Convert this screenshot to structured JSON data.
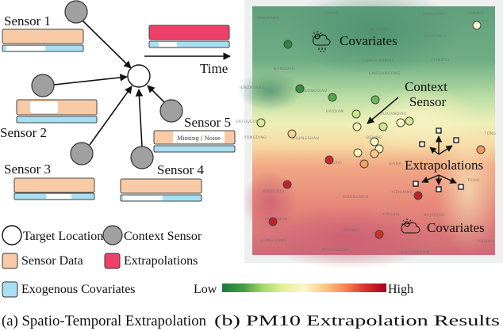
{
  "panel_a": {
    "sensors": [
      "Sensor 1",
      "Sensor 2",
      "Sensor 3",
      "Sensor 4",
      "Sensor 5"
    ],
    "missing_label": "Missing / Noise",
    "time_label": "Time",
    "legend": {
      "target_location": "Target Location",
      "context_sensor": "Context Sensor",
      "sensor_data": "Sensor Data",
      "extrapolations": "Extrapolations",
      "exogenous_covariates": "Exogenous Covariates"
    },
    "colors": {
      "sensor_data": "#f8cba6",
      "extrapolations": "#f0406a",
      "covariates": "#a8dff2",
      "context_sensor": "#a0a0a0"
    },
    "caption": "(a) Spatio-Temporal Extrapolation"
  },
  "panel_b": {
    "covariates_top": "Covariates",
    "covariates_bottom": "Covariates",
    "context_line1": "Context",
    "context_line2": "Sensor",
    "extrapolations": "Extrapolations",
    "colorbar_low": "Low",
    "colorbar_high": "High",
    "colorbar_colors": [
      "#1a7a43",
      "#3f9d3e",
      "#a6d96a",
      "#e6f29a",
      "#fdf6c8",
      "#fdc784",
      "#f4864f",
      "#d7302a",
      "#a50026"
    ],
    "caption": "(b) PM10 Extrapolation Results",
    "places": [
      "YANGFANG",
      "SHAHE",
      "BEIQIJIA",
      "GAOLIYING",
      "SHUNYI",
      "HOUSHAYU",
      "DONGXIAOKOU",
      "TIANZHU",
      "WENQUAN",
      "LAIGUANGYING",
      "IUNZHUANG",
      "XINGLONGOIAO",
      "HAIDIAN",
      "JIUXIANQIAO",
      "ENTOUGOU",
      "YONGDING",
      "SHIJINGSHAN",
      "BEIJING",
      "FENGTAI",
      "SHIBA",
      "TAIHU",
      "WANGZUO",
      "XIHONGMEN",
      "YIZHUANG",
      "YINGHAI",
      "MAJUQIAO",
      "FANGSHAN",
      "DAXING",
      "LIANGXIANG",
      "BEIZANGCUN",
      "QINGYUNDIAN",
      "YUJIAWU",
      "TONG"
    ],
    "sensor_levels": [
      0.05,
      0.08,
      0.15,
      0.18,
      0.32,
      0.45,
      0.33,
      0.48,
      0.34,
      0.35,
      0.6,
      0.5,
      0.48,
      0.46,
      0.62,
      0.7,
      0.9,
      0.92,
      0.92,
      0.92,
      0.88,
      0.5,
      0.72
    ]
  }
}
